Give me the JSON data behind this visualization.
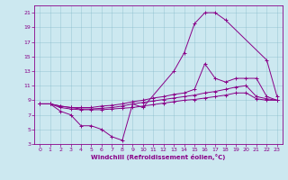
{
  "xlabel": "Windchill (Refroidissement éolien,°C)",
  "bg_color": "#cce8f0",
  "line_color": "#880088",
  "xlim": [
    -0.5,
    23.5
  ],
  "ylim": [
    3,
    22
  ],
  "xticks": [
    0,
    1,
    2,
    3,
    4,
    5,
    6,
    7,
    8,
    9,
    10,
    11,
    12,
    13,
    14,
    15,
    16,
    17,
    18,
    19,
    20,
    21,
    22,
    23
  ],
  "yticks": [
    3,
    5,
    7,
    9,
    11,
    13,
    15,
    17,
    19,
    21
  ],
  "line1": {
    "x": [
      0,
      1,
      2,
      3,
      4,
      5,
      6,
      7,
      8,
      9,
      10,
      13,
      14,
      15,
      16,
      17,
      18,
      22,
      23
    ],
    "y": [
      8.5,
      8.5,
      7.5,
      7.0,
      5.5,
      5.5,
      5.0,
      4.0,
      3.5,
      8.5,
      8.0,
      13.0,
      15.5,
      19.5,
      21.0,
      21.0,
      20.0,
      14.5,
      9.5
    ]
  },
  "line2": {
    "x": [
      0,
      1,
      2,
      3,
      4,
      5,
      6,
      7,
      8,
      9,
      10,
      11,
      12,
      13,
      14,
      15,
      16,
      17,
      18,
      19,
      20,
      21,
      22,
      23
    ],
    "y": [
      8.5,
      8.5,
      8.2,
      8.0,
      8.0,
      8.0,
      8.2,
      8.3,
      8.5,
      8.8,
      9.0,
      9.3,
      9.5,
      9.8,
      10.0,
      10.5,
      14.0,
      12.0,
      11.5,
      12.0,
      12.0,
      12.0,
      9.5,
      9.0
    ]
  },
  "line3": {
    "x": [
      0,
      1,
      2,
      3,
      4,
      5,
      6,
      7,
      8,
      9,
      10,
      11,
      12,
      13,
      14,
      15,
      16,
      17,
      18,
      19,
      20,
      21,
      22,
      23
    ],
    "y": [
      8.5,
      8.5,
      8.2,
      8.0,
      7.8,
      7.8,
      7.9,
      8.0,
      8.2,
      8.5,
      8.7,
      8.9,
      9.1,
      9.3,
      9.5,
      9.7,
      10.0,
      10.2,
      10.5,
      10.8,
      11.0,
      9.5,
      9.2,
      9.0
    ]
  },
  "line4": {
    "x": [
      0,
      1,
      2,
      3,
      4,
      5,
      6,
      7,
      8,
      9,
      10,
      11,
      12,
      13,
      14,
      15,
      16,
      17,
      18,
      19,
      20,
      21,
      22,
      23
    ],
    "y": [
      8.5,
      8.5,
      8.0,
      7.8,
      7.7,
      7.7,
      7.7,
      7.8,
      7.9,
      8.0,
      8.2,
      8.4,
      8.6,
      8.8,
      9.0,
      9.1,
      9.3,
      9.5,
      9.7,
      10.0,
      10.0,
      9.2,
      9.0,
      9.0
    ]
  }
}
